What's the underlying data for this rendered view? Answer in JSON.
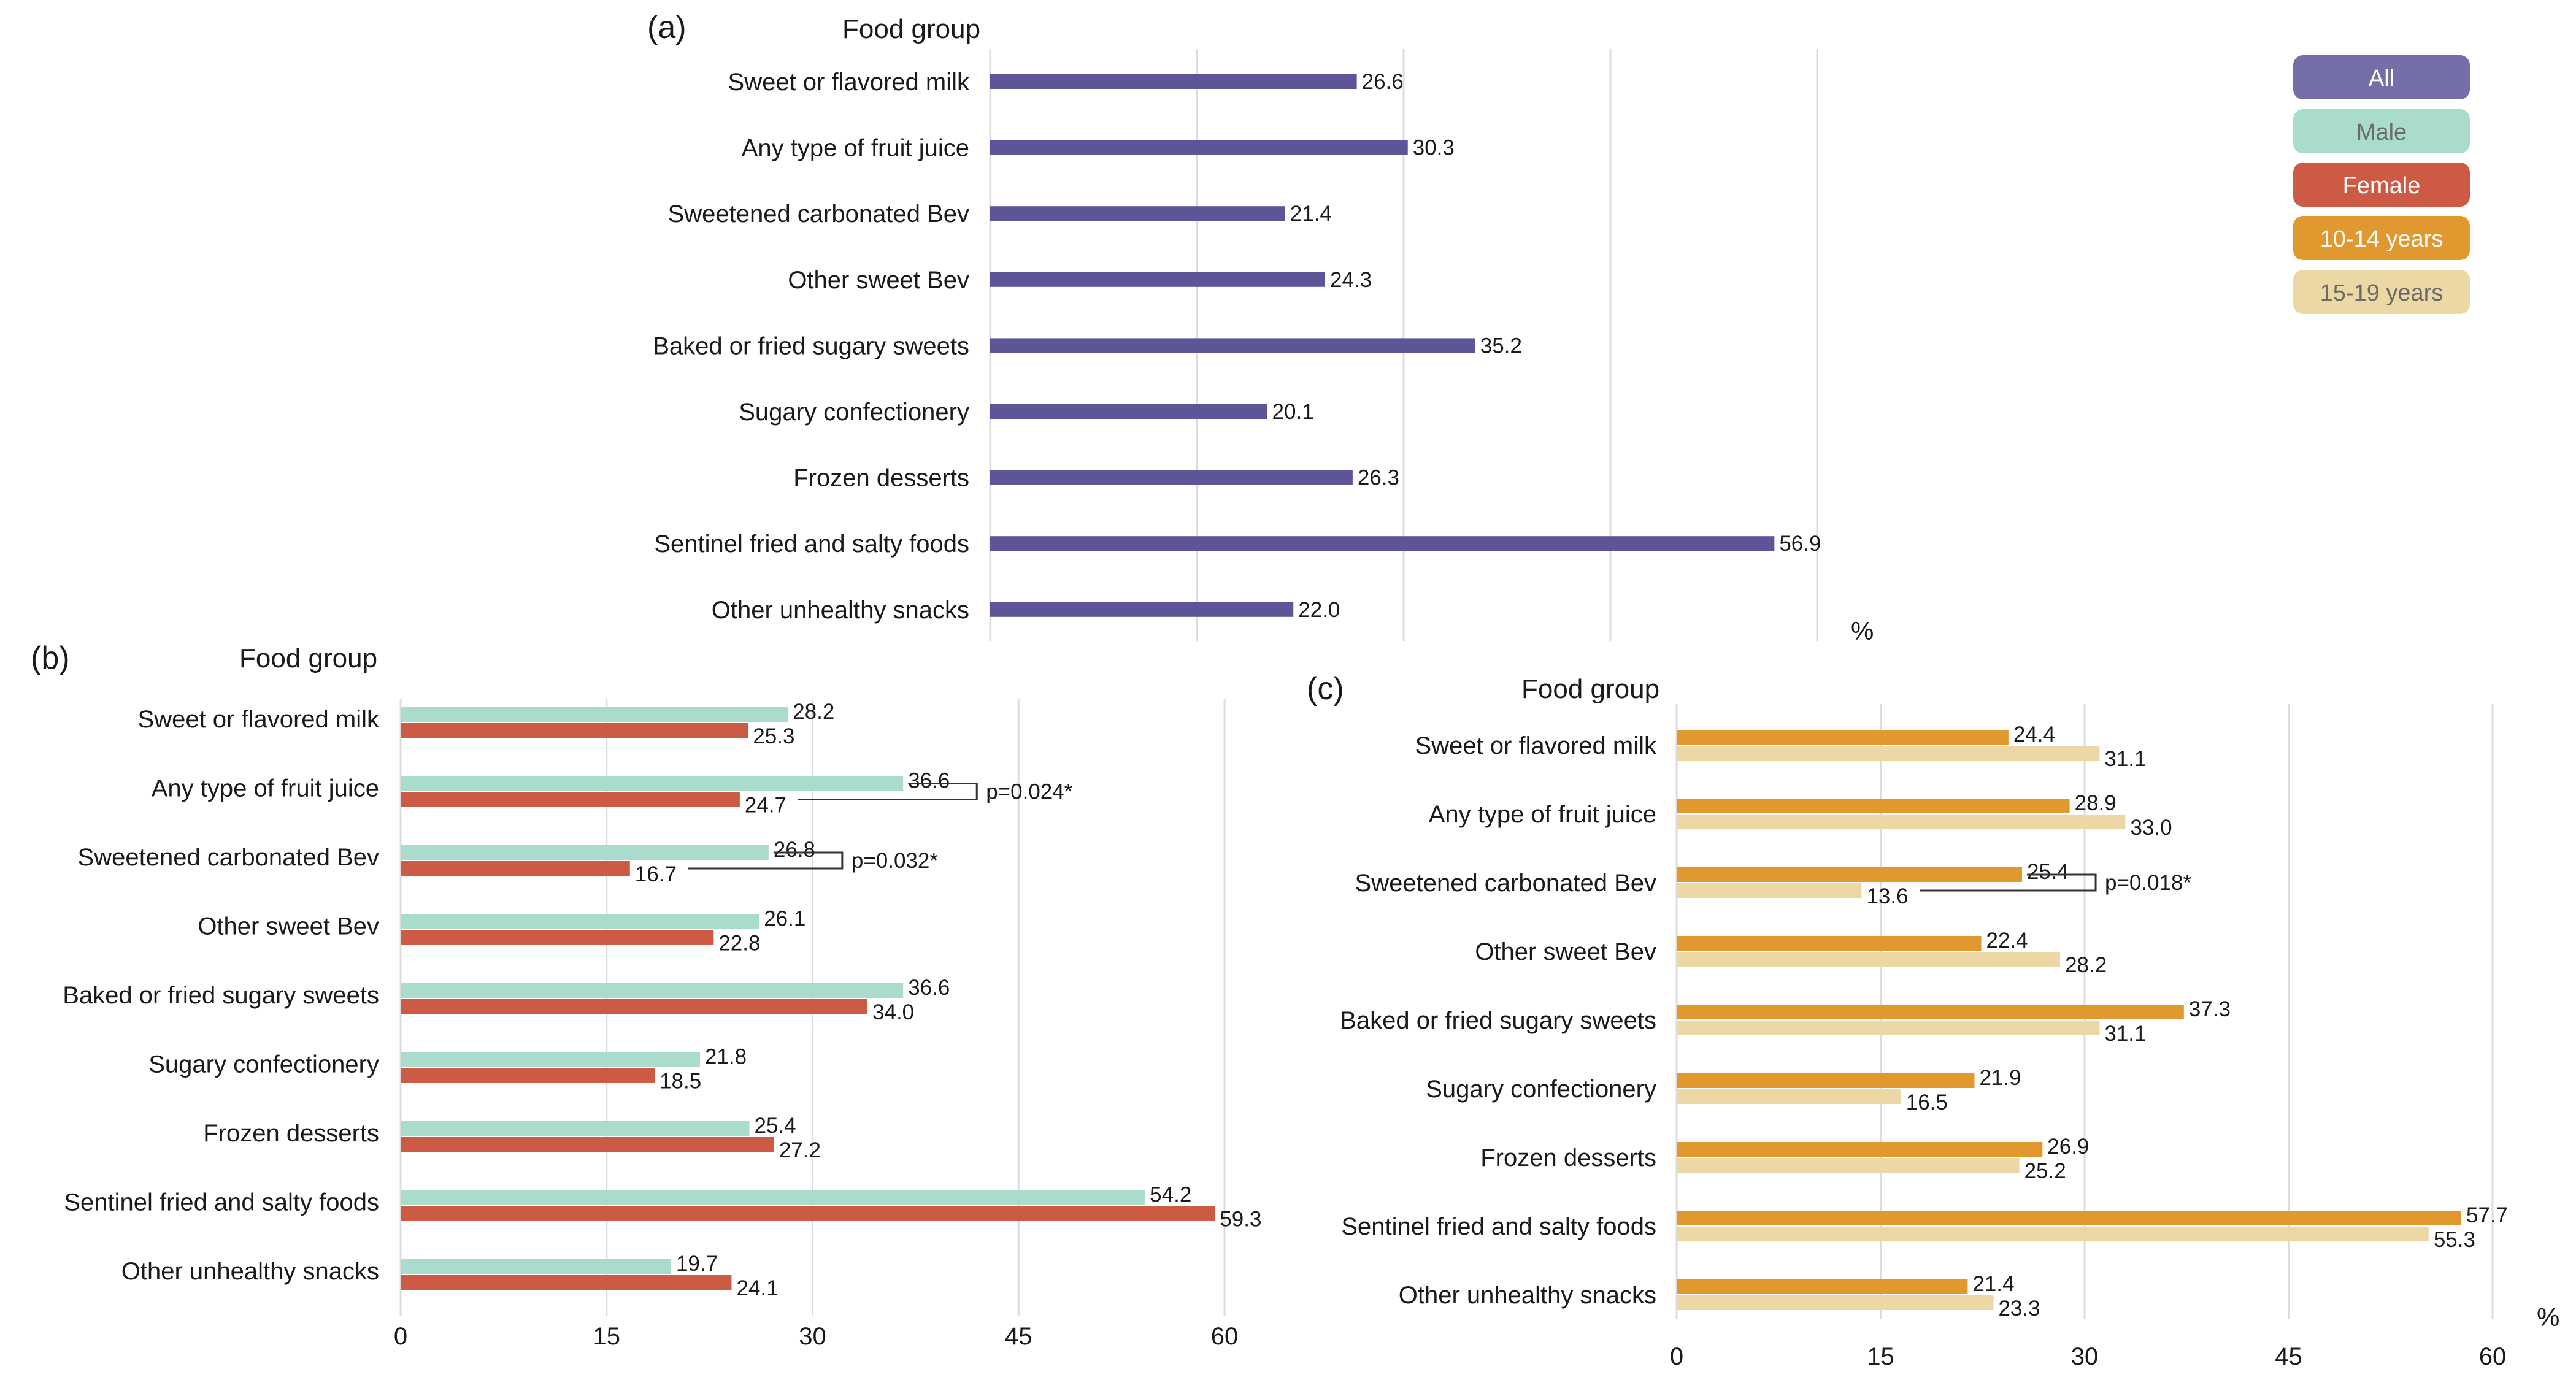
{
  "colors": {
    "all": "#5c5699",
    "male": "#a9dccd",
    "female": "#cc5a44",
    "age_10_14": "#e1992f",
    "age_15_19": "#ecd8a4"
  },
  "legend": [
    "All",
    "Male",
    "Female",
    "10-14 years",
    "15-19 years"
  ],
  "chart_data": [
    {
      "panel": "(a)",
      "type": "bar",
      "orientation": "horizontal",
      "title": "Food group",
      "xlabel": "%",
      "categories": [
        "Sweet or flavored milk",
        "Any type of fruit juice",
        "Sweetened carbonated Bev",
        "Other sweet Bev",
        "Baked or fried sugary sweets",
        "Sugary confectionery",
        "Frozen desserts",
        "Sentinel fried and salty foods",
        "Other unhealthy snacks"
      ],
      "series": [
        {
          "name": "All",
          "values": [
            26.6,
            30.3,
            21.4,
            24.3,
            35.2,
            20.1,
            26.3,
            56.9,
            22.0
          ],
          "labels": [
            "26.6",
            "30.3",
            "21.4",
            "24.3",
            "35.2",
            "20.1",
            "26.3",
            "56.9",
            "22.0"
          ]
        }
      ],
      "xlim": [
        0,
        60
      ],
      "grid": true
    },
    {
      "panel": "(b)",
      "type": "bar",
      "orientation": "horizontal",
      "title": "Food group",
      "xlabel": "",
      "categories": [
        "Sweet or flavored milk",
        "Any type of fruit juice",
        "Sweetened carbonated Bev",
        "Other sweet Bev",
        "Baked or fried sugary sweets",
        "Sugary confectionery",
        "Frozen desserts",
        "Sentinel fried and salty foods",
        "Other unhealthy snacks"
      ],
      "series": [
        {
          "name": "Male",
          "values": [
            28.2,
            36.6,
            26.8,
            26.1,
            36.6,
            21.8,
            25.4,
            54.2,
            19.7
          ],
          "labels": [
            "28.2",
            "36.6",
            "26.8",
            "26.1",
            "36.6",
            "21.8",
            "25.4",
            "54.2",
            "19.7"
          ]
        },
        {
          "name": "Female",
          "values": [
            25.3,
            24.7,
            16.7,
            22.8,
            34.0,
            18.5,
            27.2,
            59.3,
            24.1
          ],
          "labels": [
            "25.3",
            "24.7",
            "16.7",
            "22.8",
            "34.0",
            "18.5",
            "27.2",
            "59.3",
            "24.1"
          ]
        }
      ],
      "annotations": [
        {
          "category_index": 1,
          "text": "p=0.024*"
        },
        {
          "category_index": 2,
          "text": "p=0.032*"
        }
      ],
      "xlim": [
        0,
        60
      ],
      "xticks": [
        "0",
        "15",
        "30",
        "45",
        "60"
      ],
      "grid": true
    },
    {
      "panel": "(c)",
      "type": "bar",
      "orientation": "horizontal",
      "title": "Food group",
      "xlabel": "%",
      "categories": [
        "Sweet or flavored milk",
        "Any type of fruit juice",
        "Sweetened carbonated Bev",
        "Other sweet Bev",
        "Baked or fried sugary sweets",
        "Sugary confectionery",
        "Frozen desserts",
        "Sentinel fried and salty foods",
        "Other unhealthy snacks"
      ],
      "series": [
        {
          "name": "10-14 years",
          "values": [
            24.4,
            28.9,
            25.4,
            22.4,
            37.3,
            21.9,
            26.9,
            57.7,
            21.4
          ],
          "labels": [
            "24.4",
            "28.9",
            "25.4",
            "22.4",
            "37.3",
            "21.9",
            "26.9",
            "57.7",
            "21.4"
          ]
        },
        {
          "name": "15-19 years",
          "values": [
            31.1,
            33.0,
            13.6,
            28.2,
            31.1,
            16.5,
            25.2,
            55.3,
            23.3
          ],
          "labels": [
            "31.1",
            "33.0",
            "13.6",
            "28.2",
            "31.1",
            "16.5",
            "25.2",
            "55.3",
            "23.3"
          ]
        }
      ],
      "annotations": [
        {
          "category_index": 2,
          "text": "p=0.018*"
        }
      ],
      "xlim": [
        0,
        60
      ],
      "xticks": [
        "0",
        "15",
        "30",
        "45",
        "60"
      ],
      "grid": true
    }
  ]
}
